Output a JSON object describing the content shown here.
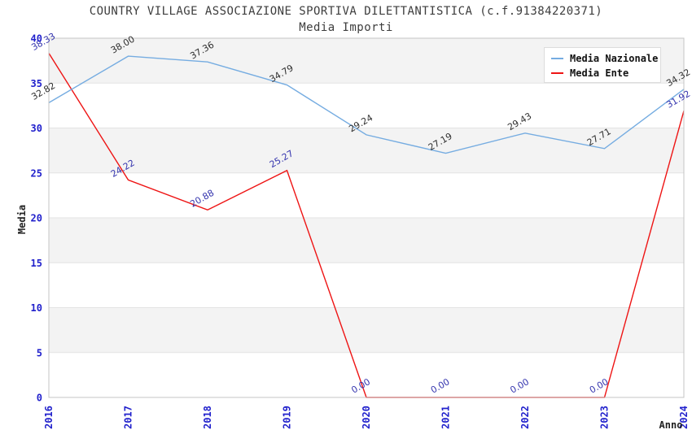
{
  "title": "COUNTRY VILLAGE ASSOCIAZIONE SPORTIVA DILETTANTISTICA (c.f.91384220371)",
  "subtitle": "Media Importi",
  "chart_data": {
    "type": "line",
    "categories": [
      "2016",
      "2017",
      "2018",
      "2019",
      "2020",
      "2021",
      "2022",
      "2023",
      "2024"
    ],
    "series": [
      {
        "name": "Media Nazionale",
        "color": "#75ace1",
        "label_color": "#2e2e2e",
        "values": [
          32.82,
          38.0,
          37.36,
          34.79,
          29.24,
          27.19,
          29.43,
          27.71,
          34.32
        ]
      },
      {
        "name": "Media Ente",
        "color": "#ee1414",
        "label_color": "#3434ae",
        "values": [
          38.33,
          24.22,
          20.88,
          25.27,
          0.0,
          0.0,
          0.0,
          0.0,
          31.92
        ]
      }
    ],
    "xlabel": "Anno",
    "ylabel": "Media",
    "ylim": [
      0,
      40
    ],
    "yticks": [
      0,
      5,
      10,
      15,
      20,
      25,
      30,
      35,
      40
    ],
    "value_label_decimals": 2,
    "grid": "horizontal",
    "legend_position": "top-right",
    "colors": {
      "tick_label": "#2121cc",
      "axis_label": "#222222",
      "band_fill": "#f3f3f3",
      "gridline": "#e3e3e3",
      "spine": "#c4c4c4",
      "title_text": "#3d3d3d"
    }
  }
}
